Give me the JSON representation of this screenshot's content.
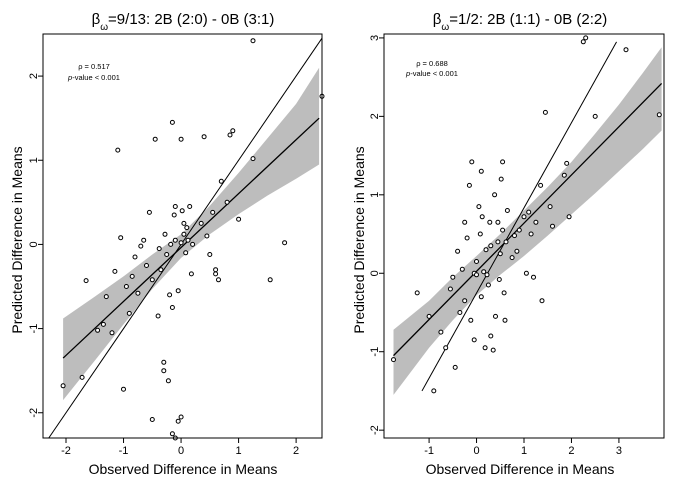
{
  "chart_data": [
    {
      "type": "scatter",
      "title_sym": "β",
      "title_sub": "ω",
      "title_rest": "=9/13: 2B (2:0) - 0B (3:1)",
      "xlabel": "Observed Difference in Means",
      "ylabel": "Predicted Difference in Means",
      "xlim": [
        -2.4,
        2.45
      ],
      "ylim": [
        -2.3,
        2.5
      ],
      "xticks": [
        -2,
        -1,
        0,
        1,
        2
      ],
      "yticks": [
        -2,
        -1,
        0,
        1,
        2
      ],
      "annotation": {
        "rho": "ρ = 0.517",
        "pvalue_label": "p",
        "pvalue_rest": "-value < 0.001"
      },
      "fit_line": {
        "x": [
          -2.05,
          2.4
        ],
        "y": [
          -1.35,
          1.5
        ]
      },
      "band": {
        "x": [
          -2.05,
          -1.5,
          -1.0,
          -0.5,
          0.0,
          0.5,
          1.0,
          1.5,
          2.0,
          2.4
        ],
        "lower": [
          -1.85,
          -1.38,
          -0.95,
          -0.53,
          -0.16,
          0.12,
          0.36,
          0.58,
          0.78,
          0.95
        ],
        "upper": [
          -0.88,
          -0.62,
          -0.38,
          -0.12,
          0.12,
          0.46,
          0.85,
          1.26,
          1.67,
          2.1
        ]
      },
      "identity_line": {
        "x": [
          -2.3,
          2.45
        ],
        "y": [
          -2.3,
          2.45
        ]
      },
      "points": [
        [
          -2.05,
          -1.68
        ],
        [
          -1.72,
          -1.58
        ],
        [
          -1.65,
          -0.43
        ],
        [
          -1.45,
          -1.02
        ],
        [
          -1.35,
          -0.95
        ],
        [
          -1.3,
          -0.62
        ],
        [
          -1.2,
          -1.05
        ],
        [
          -1.15,
          -0.32
        ],
        [
          -1.1,
          1.12
        ],
        [
          -1.05,
          0.08
        ],
        [
          -1.0,
          -1.72
        ],
        [
          -0.95,
          -0.5
        ],
        [
          -0.9,
          -0.82
        ],
        [
          -0.85,
          -0.38
        ],
        [
          -0.8,
          -0.15
        ],
        [
          -0.75,
          -0.58
        ],
        [
          -0.7,
          -0.02
        ],
        [
          -0.65,
          0.05
        ],
        [
          -0.6,
          -0.25
        ],
        [
          -0.55,
          0.38
        ],
        [
          -0.5,
          -0.42
        ],
        [
          -0.5,
          -2.08
        ],
        [
          -0.45,
          1.25
        ],
        [
          -0.4,
          -0.85
        ],
        [
          -0.38,
          -0.05
        ],
        [
          -0.35,
          -0.3
        ],
        [
          -0.3,
          -1.4
        ],
        [
          -0.3,
          -1.5
        ],
        [
          -0.28,
          0.12
        ],
        [
          -0.25,
          -0.12
        ],
        [
          -0.22,
          -1.62
        ],
        [
          -0.2,
          -0.6
        ],
        [
          -0.18,
          0.0
        ],
        [
          -0.15,
          -0.75
        ],
        [
          -0.12,
          0.35
        ],
        [
          -0.1,
          0.45
        ],
        [
          -0.1,
          0.05
        ],
        [
          -0.05,
          -0.55
        ],
        [
          -0.05,
          -2.1
        ],
        [
          0.0,
          -2.05
        ],
        [
          0.0,
          0.02
        ],
        [
          0.02,
          0.4
        ],
        [
          0.05,
          0.25
        ],
        [
          0.05,
          0.12
        ],
        [
          0.08,
          -0.1
        ],
        [
          0.1,
          0.2
        ],
        [
          0.12,
          0.05
        ],
        [
          0.15,
          0.45
        ],
        [
          0.18,
          -0.35
        ],
        [
          0.2,
          0.0
        ],
        [
          -0.15,
          1.45
        ],
        [
          0.0,
          1.25
        ],
        [
          0.4,
          1.28
        ],
        [
          0.35,
          0.25
        ],
        [
          0.45,
          0.1
        ],
        [
          0.5,
          -0.12
        ],
        [
          0.55,
          0.38
        ],
        [
          0.6,
          -0.3
        ],
        [
          0.65,
          -0.42
        ],
        [
          0.7,
          0.75
        ],
        [
          0.8,
          0.5
        ],
        [
          0.85,
          1.3
        ],
        [
          0.9,
          1.35
        ],
        [
          1.0,
          0.3
        ],
        [
          1.25,
          1.02
        ],
        [
          1.25,
          2.42
        ],
        [
          1.55,
          -0.42
        ],
        [
          1.8,
          0.02
        ],
        [
          2.45,
          1.76
        ],
        [
          -0.15,
          -2.25
        ],
        [
          -0.1,
          -2.3
        ],
        [
          0.6,
          -0.35
        ]
      ]
    },
    {
      "type": "scatter",
      "title_sym": "β",
      "title_sub": "ω",
      "title_rest": "=1/2: 2B (1:1) - 0B (2:2)",
      "xlabel": "Observed Difference in Means",
      "ylabel": "Predicted Difference in Means",
      "xlim": [
        -1.95,
        3.95
      ],
      "ylim": [
        -2.1,
        3.05
      ],
      "xticks": [
        -1,
        0,
        1,
        2,
        3
      ],
      "yticks": [
        -2,
        -1,
        0,
        1,
        2,
        3
      ],
      "annotation": {
        "rho": "ρ = 0.688",
        "pvalue_label": "p",
        "pvalue_rest": "-value < 0.001"
      },
      "fit_line": {
        "x": [
          -1.75,
          3.9
        ],
        "y": [
          -1.05,
          2.42
        ]
      },
      "band": {
        "x": [
          -1.75,
          -1.0,
          -0.5,
          0.0,
          0.5,
          1.0,
          1.5,
          2.0,
          2.5,
          3.0,
          3.5,
          3.9
        ],
        "lower": [
          -1.55,
          -0.95,
          -0.6,
          -0.28,
          -0.02,
          0.22,
          0.48,
          0.75,
          1.02,
          1.3,
          1.58,
          1.82
        ],
        "upper": [
          -0.72,
          -0.35,
          -0.05,
          0.22,
          0.5,
          0.8,
          1.1,
          1.42,
          1.78,
          2.15,
          2.55,
          2.88
        ]
      },
      "identity_line": {
        "x": [
          -1.15,
          2.95
        ],
        "y": [
          -1.5,
          2.95
        ]
      },
      "points": [
        [
          -1.75,
          -1.1
        ],
        [
          -1.25,
          -0.25
        ],
        [
          -1.0,
          -0.55
        ],
        [
          -0.9,
          -1.5
        ],
        [
          -0.75,
          -0.75
        ],
        [
          -0.65,
          -0.95
        ],
        [
          -0.55,
          -0.2
        ],
        [
          -0.5,
          -0.05
        ],
        [
          -0.45,
          -1.2
        ],
        [
          -0.4,
          0.28
        ],
        [
          -0.35,
          -0.5
        ],
        [
          -0.3,
          0.05
        ],
        [
          -0.25,
          -0.35
        ],
        [
          -0.25,
          0.65
        ],
        [
          -0.2,
          0.45
        ],
        [
          -0.15,
          1.12
        ],
        [
          -0.12,
          -0.6
        ],
        [
          -0.1,
          1.42
        ],
        [
          -0.05,
          -0.85
        ],
        [
          -0.05,
          0.0
        ],
        [
          0.0,
          0.15
        ],
        [
          0.0,
          -0.02
        ],
        [
          0.05,
          0.85
        ],
        [
          0.08,
          0.5
        ],
        [
          0.1,
          1.3
        ],
        [
          0.1,
          -0.3
        ],
        [
          0.12,
          0.72
        ],
        [
          0.15,
          0.02
        ],
        [
          0.18,
          -0.95
        ],
        [
          0.2,
          0.3
        ],
        [
          0.22,
          -0.02
        ],
        [
          0.25,
          -0.15
        ],
        [
          0.28,
          0.65
        ],
        [
          0.3,
          -0.8
        ],
        [
          0.3,
          0.35
        ],
        [
          0.35,
          -0.98
        ],
        [
          0.38,
          1.0
        ],
        [
          0.4,
          -0.55
        ],
        [
          0.45,
          0.4
        ],
        [
          0.48,
          -0.08
        ],
        [
          0.5,
          0.25
        ],
        [
          0.52,
          1.2
        ],
        [
          0.55,
          1.42
        ],
        [
          0.55,
          0.55
        ],
        [
          0.58,
          -0.25
        ],
        [
          0.6,
          -0.6
        ],
        [
          0.62,
          0.4
        ],
        [
          0.65,
          0.8
        ],
        [
          0.75,
          0.2
        ],
        [
          0.8,
          0.48
        ],
        [
          0.85,
          0.28
        ],
        [
          0.9,
          0.55
        ],
        [
          1.0,
          0.72
        ],
        [
          1.05,
          0.0
        ],
        [
          1.1,
          0.78
        ],
        [
          1.15,
          0.5
        ],
        [
          1.2,
          -0.05
        ],
        [
          1.25,
          0.65
        ],
        [
          1.35,
          1.12
        ],
        [
          1.38,
          -0.35
        ],
        [
          1.45,
          2.05
        ],
        [
          1.6,
          0.6
        ],
        [
          1.85,
          1.25
        ],
        [
          1.9,
          1.4
        ],
        [
          1.95,
          0.72
        ],
        [
          2.25,
          2.95
        ],
        [
          2.3,
          3.0
        ],
        [
          3.15,
          2.85
        ],
        [
          3.85,
          2.02
        ],
        [
          2.5,
          2.0
        ],
        [
          1.55,
          0.85
        ],
        [
          0.45,
          0.65
        ]
      ]
    }
  ]
}
